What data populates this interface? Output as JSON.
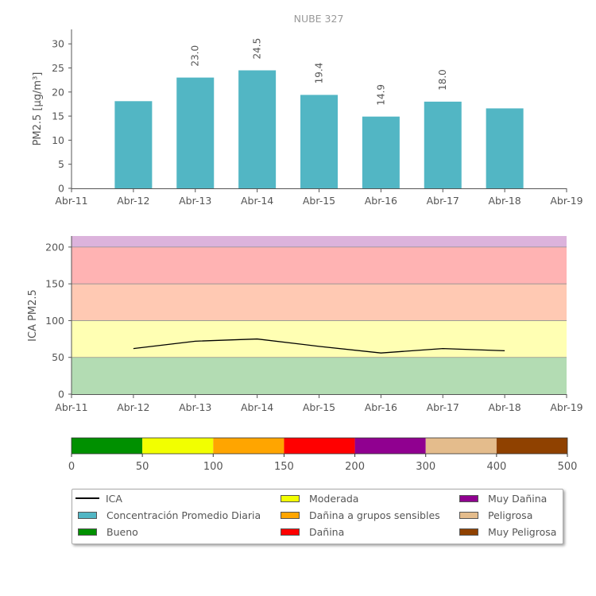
{
  "chart_data": [
    {
      "type": "bar",
      "title": "NUBE 327",
      "ylabel": "PM2.5 [μg/m³]",
      "x_ticks": [
        "Abr-11",
        "Abr-12",
        "Abr-13",
        "Abr-14",
        "Abr-15",
        "Abr-16",
        "Abr-17",
        "Abr-18",
        "Abr-19"
      ],
      "categories": [
        "Abr-12",
        "Abr-13",
        "Abr-14",
        "Abr-15",
        "Abr-16",
        "Abr-17",
        "Abr-18"
      ],
      "values": [
        18.1,
        23.0,
        24.5,
        19.4,
        14.9,
        18.0,
        16.6
      ],
      "data_labels": [
        "",
        "23.0",
        "24.5",
        "19.4",
        "14.9",
        "18.0",
        ""
      ],
      "ylim": [
        0,
        33
      ],
      "y_ticks": [
        0,
        5,
        10,
        15,
        20,
        25,
        30
      ],
      "bar_color": "#52b6c4"
    },
    {
      "type": "line",
      "ylabel": "ICA PM2.5",
      "x_ticks": [
        "Abr-11",
        "Abr-12",
        "Abr-13",
        "Abr-14",
        "Abr-15",
        "Abr-16",
        "Abr-17",
        "Abr-18",
        "Abr-19"
      ],
      "x": [
        "Abr-12",
        "Abr-13",
        "Abr-14",
        "Abr-15",
        "Abr-16",
        "Abr-17",
        "Abr-18"
      ],
      "y": [
        62,
        72,
        75,
        65,
        56,
        62,
        59
      ],
      "ylim": [
        0,
        215
      ],
      "y_ticks": [
        0,
        50,
        100,
        150,
        200
      ],
      "line_color": "#000000",
      "bands": [
        {
          "from": 0,
          "to": 50,
          "color": "#b3dcb3"
        },
        {
          "from": 50,
          "to": 100,
          "color": "#ffffb3"
        },
        {
          "from": 100,
          "to": 150,
          "color": "#ffc9b3"
        },
        {
          "from": 150,
          "to": 200,
          "color": "#ffb3b3"
        },
        {
          "from": 200,
          "to": 215,
          "color": "#dcb3dc"
        }
      ]
    }
  ],
  "colorbar": {
    "segments": [
      {
        "color": "#009000"
      },
      {
        "color": "#f2ff00"
      },
      {
        "color": "#ffa500"
      },
      {
        "color": "#ff0000"
      },
      {
        "color": "#900090"
      },
      {
        "color": "#e4bc8c"
      },
      {
        "color": "#8f4100"
      }
    ],
    "ticks": [
      "0",
      "50",
      "100",
      "150",
      "200",
      "300",
      "400",
      "500"
    ]
  },
  "legend": {
    "items": [
      {
        "label": "ICA",
        "kind": "line",
        "color": "#000000"
      },
      {
        "label": "Concentración Promedio Diaria",
        "kind": "patch",
        "color": "#52b6c4"
      },
      {
        "label": "Bueno",
        "kind": "patch",
        "color": "#009000"
      },
      {
        "label": "Moderada",
        "kind": "patch",
        "color": "#f2ff00"
      },
      {
        "label": "Dañina a grupos sensibles",
        "kind": "patch",
        "color": "#ffa500"
      },
      {
        "label": "Dañina",
        "kind": "patch",
        "color": "#ff0000"
      },
      {
        "label": "Muy Dañina",
        "kind": "patch",
        "color": "#900090"
      },
      {
        "label": "Peligrosa",
        "kind": "patch",
        "color": "#e4bc8c"
      },
      {
        "label": "Muy Peligrosa",
        "kind": "patch",
        "color": "#8f4100"
      }
    ]
  }
}
